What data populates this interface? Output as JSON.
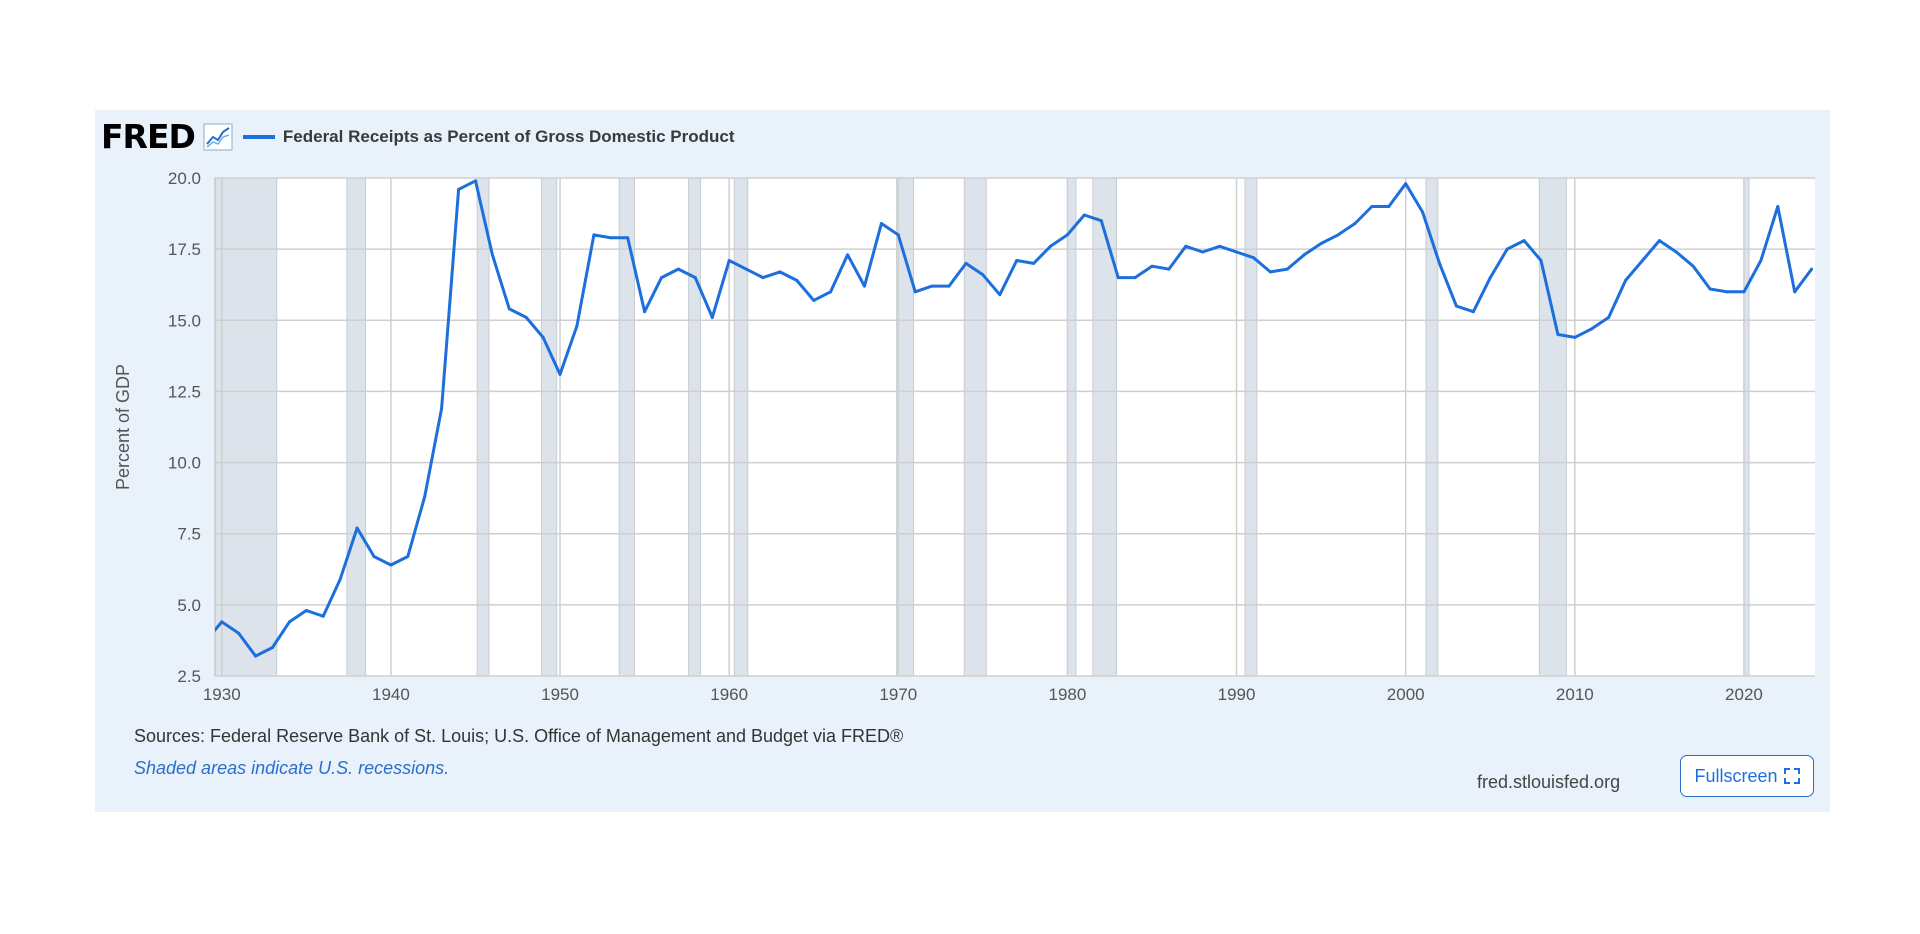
{
  "header": {
    "logo": "FRED",
    "logo_icon": "line-chart-icon",
    "series_label": "Federal Receipts as Percent of Gross Domestic Product"
  },
  "colors": {
    "line": "#1d6fde",
    "recession": "#dde3ea",
    "grid": "#cfcfcf",
    "panel": "#e9f2fa"
  },
  "chart_data": {
    "type": "line",
    "ylabel": "Percent of GDP",
    "xlabel": "",
    "xlim": [
      1929.6,
      2024.2
    ],
    "ylim": [
      2.5,
      20.0
    ],
    "yticks": [
      "2.5",
      "5.0",
      "7.5",
      "10.0",
      "12.5",
      "15.0",
      "17.5",
      "20.0"
    ],
    "xticks": [
      "1930",
      "1940",
      "1950",
      "1960",
      "1970",
      "1980",
      "1990",
      "2000",
      "2010",
      "2020"
    ],
    "grid": true,
    "legend": "top-left",
    "recessions": [
      [
        1929.6,
        1933.25
      ],
      [
        1937.4,
        1938.5
      ],
      [
        1945.1,
        1945.8
      ],
      [
        1948.9,
        1949.8
      ],
      [
        1953.5,
        1954.4
      ],
      [
        1957.6,
        1958.3
      ],
      [
        1960.3,
        1961.1
      ],
      [
        1969.9,
        1970.9
      ],
      [
        1973.9,
        1975.2
      ],
      [
        1980.0,
        1980.5
      ],
      [
        1981.5,
        1982.9
      ],
      [
        1990.5,
        1991.2
      ],
      [
        2001.2,
        2001.9
      ],
      [
        2007.9,
        2009.5
      ],
      [
        2020.0,
        2020.3
      ]
    ],
    "series": [
      {
        "name": "Federal Receipts as Percent of Gross Domestic Product",
        "x": [
          1929,
          1930,
          1931,
          1932,
          1933,
          1934,
          1935,
          1936,
          1937,
          1938,
          1939,
          1940,
          1941,
          1942,
          1943,
          1944,
          1945,
          1946,
          1947,
          1948,
          1949,
          1950,
          1951,
          1952,
          1953,
          1954,
          1955,
          1956,
          1957,
          1958,
          1959,
          1960,
          1961,
          1962,
          1963,
          1964,
          1965,
          1966,
          1967,
          1968,
          1969,
          1970,
          1971,
          1972,
          1973,
          1974,
          1975,
          1976,
          1977,
          1978,
          1979,
          1980,
          1981,
          1982,
          1983,
          1984,
          1985,
          1986,
          1987,
          1988,
          1989,
          1990,
          1991,
          1992,
          1993,
          1994,
          1995,
          1996,
          1997,
          1998,
          1999,
          2000,
          2001,
          2002,
          2003,
          2004,
          2005,
          2006,
          2007,
          2008,
          2009,
          2010,
          2011,
          2012,
          2013,
          2014,
          2015,
          2016,
          2017,
          2018,
          2019,
          2020,
          2021,
          2022,
          2023,
          2024
        ],
        "values": [
          3.7,
          4.4,
          4.0,
          3.2,
          3.5,
          4.4,
          4.8,
          4.6,
          5.9,
          7.7,
          6.7,
          6.4,
          6.7,
          8.8,
          11.9,
          19.6,
          19.9,
          17.3,
          15.4,
          15.1,
          14.4,
          13.1,
          14.8,
          18.0,
          17.9,
          17.9,
          15.3,
          16.5,
          16.8,
          16.5,
          15.1,
          17.1,
          16.8,
          16.5,
          16.7,
          16.4,
          15.7,
          16.0,
          17.3,
          16.2,
          18.4,
          18.0,
          16.0,
          16.2,
          16.2,
          17.0,
          16.6,
          15.9,
          17.1,
          17.0,
          17.6,
          18.0,
          18.7,
          18.5,
          16.5,
          16.5,
          16.9,
          16.8,
          17.6,
          17.4,
          17.6,
          17.4,
          17.2,
          16.7,
          16.8,
          17.3,
          17.7,
          18.0,
          18.4,
          19.0,
          19.0,
          19.8,
          18.8,
          17.0,
          15.5,
          15.3,
          16.5,
          17.5,
          17.8,
          17.1,
          14.5,
          14.4,
          14.7,
          15.1,
          16.4,
          17.1,
          17.8,
          17.4,
          16.9,
          16.1,
          16.0,
          16.0,
          17.1,
          19.0,
          16.0,
          16.8
        ]
      }
    ]
  },
  "footer": {
    "sources": "Sources: Federal Reserve Bank of St. Louis; U.S. Office of Management and Budget via FRED®",
    "recession_note": "Shaded areas indicate U.S. recessions.",
    "site": "fred.stlouisfed.org",
    "fullscreen_label": "Fullscreen",
    "fullscreen_icon": "expand-icon"
  }
}
